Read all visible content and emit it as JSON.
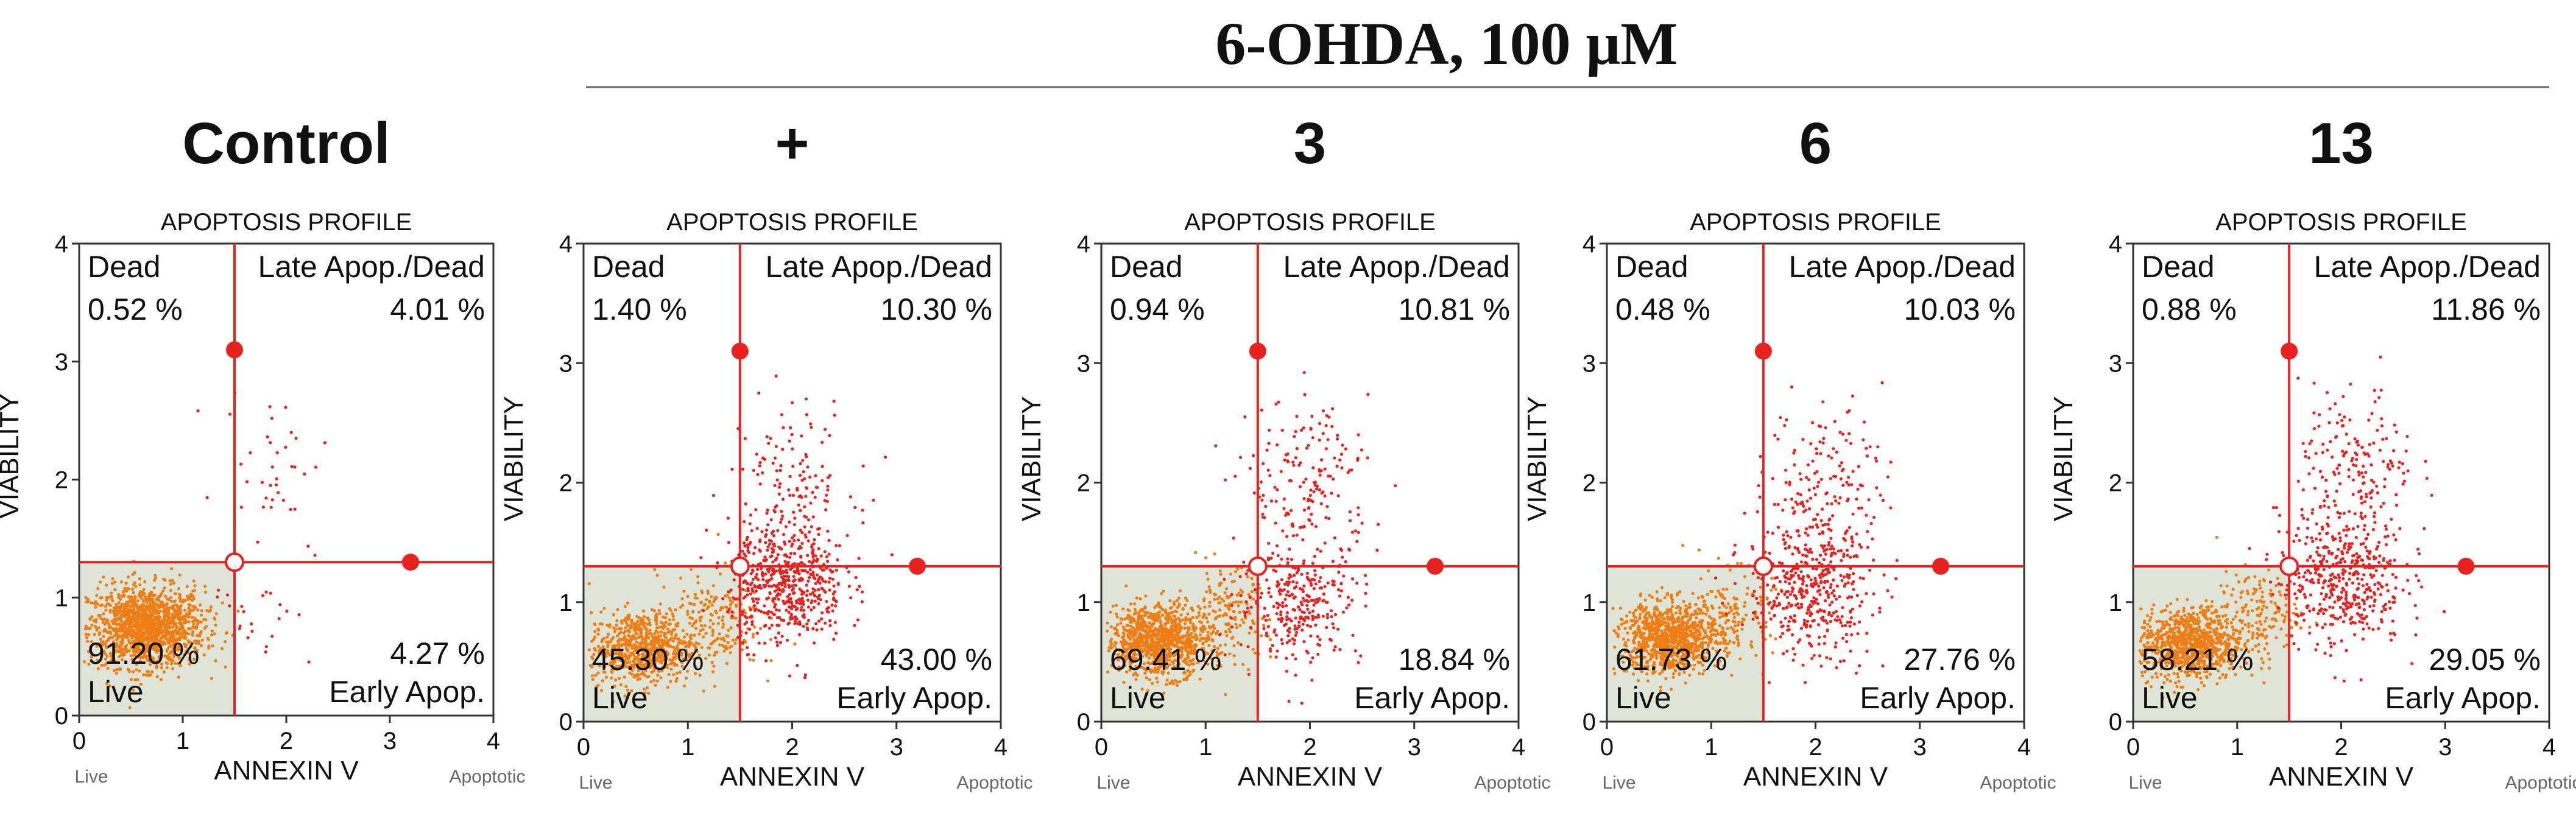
{
  "header": {
    "title": "6-OHDA, 100 μM"
  },
  "colors": {
    "quadline": "#e8231f",
    "dots_red": "#e8231f",
    "dots_orange": "#ef7d14",
    "live_fill": "#dfe5d6",
    "axis": "#333333",
    "text": "#111111"
  },
  "chart_data": [
    {
      "type": "scatter",
      "panel_label": "Control",
      "title": "APOPTOSIS PROFILE",
      "xlabel": "ANNEXIN V",
      "ylabel": "VIABILITY",
      "x_left_note": "Live",
      "x_right_note": "Apoptotic",
      "xlim": [
        0,
        4
      ],
      "ylim": [
        0,
        4
      ],
      "xticks": [
        "0",
        "1",
        "2",
        "3",
        "4"
      ],
      "yticks": [
        "0",
        "1",
        "2",
        "3",
        "4"
      ],
      "gate": {
        "x": 1.5,
        "y": 1.3
      },
      "quadrants": {
        "dead_label": "Dead",
        "dead_pct": "0.52 %",
        "late_label": "Late Apop./Dead",
        "late_pct": "4.01 %",
        "live_label": "Live",
        "live_pct": "91.20 %",
        "early_label": "Early Apop.",
        "early_pct": "4.27 %"
      },
      "scatter_clusters": [
        {
          "color": "orange",
          "cx": 0.65,
          "cy": 0.75,
          "sx": 0.28,
          "sy": 0.17,
          "n": 1400
        },
        {
          "color": "red",
          "cx": 1.9,
          "cy": 2.2,
          "sx": 0.25,
          "sy": 0.3,
          "n": 35
        },
        {
          "color": "red",
          "cx": 1.75,
          "cy": 1.0,
          "sx": 0.25,
          "sy": 0.3,
          "n": 25
        }
      ]
    },
    {
      "type": "scatter",
      "panel_label": "+",
      "title": "APOPTOSIS PROFILE",
      "xlabel": "ANNEXIN V",
      "ylabel": "VIABILITY",
      "x_left_note": "Live",
      "x_right_note": "Apoptotic",
      "xlim": [
        0,
        4
      ],
      "ylim": [
        0,
        4
      ],
      "xticks": [
        "0",
        "1",
        "2",
        "3",
        "4"
      ],
      "yticks": [
        "0",
        "1",
        "2",
        "3",
        "4"
      ],
      "gate": {
        "x": 1.5,
        "y": 1.3
      },
      "quadrants": {
        "dead_label": "Dead",
        "dead_pct": "1.40 %",
        "late_label": "Late Apop./Dead",
        "late_pct": "10.30 %",
        "live_label": "Live",
        "live_pct": "45.30 %",
        "early_label": "Early Apop.",
        "early_pct": "43.00 %"
      },
      "scatter_clusters": [
        {
          "color": "orange",
          "cx": 0.55,
          "cy": 0.62,
          "sx": 0.25,
          "sy": 0.15,
          "n": 700
        },
        {
          "color": "orange",
          "cx": 1.2,
          "cy": 0.85,
          "sx": 0.25,
          "sy": 0.2,
          "n": 200
        },
        {
          "color": "red",
          "cx": 1.95,
          "cy": 1.15,
          "sx": 0.28,
          "sy": 0.25,
          "n": 550
        },
        {
          "color": "red",
          "cx": 2.0,
          "cy": 2.0,
          "sx": 0.3,
          "sy": 0.35,
          "n": 140
        }
      ]
    },
    {
      "type": "scatter",
      "panel_label": "3",
      "title": "APOPTOSIS PROFILE",
      "xlabel": "ANNEXIN V",
      "ylabel": "VIABILITY",
      "x_left_note": "Live",
      "x_right_note": "Apoptotic",
      "xlim": [
        0,
        4
      ],
      "ylim": [
        0,
        4
      ],
      "xticks": [
        "0",
        "1",
        "2",
        "3",
        "4"
      ],
      "yticks": [
        "0",
        "1",
        "2",
        "3",
        "4"
      ],
      "gate": {
        "x": 1.5,
        "y": 1.3
      },
      "quadrants": {
        "dead_label": "Dead",
        "dead_pct": "0.94 %",
        "late_label": "Late Apop./Dead",
        "late_pct": "10.81 %",
        "live_label": "Live",
        "live_pct": "69.41 %",
        "early_label": "Early Apop.",
        "early_pct": "18.84 %"
      },
      "scatter_clusters": [
        {
          "color": "orange",
          "cx": 0.55,
          "cy": 0.68,
          "sx": 0.25,
          "sy": 0.15,
          "n": 1000
        },
        {
          "color": "orange",
          "cx": 1.2,
          "cy": 0.9,
          "sx": 0.2,
          "sy": 0.18,
          "n": 150
        },
        {
          "color": "red",
          "cx": 1.9,
          "cy": 1.0,
          "sx": 0.3,
          "sy": 0.25,
          "n": 300
        },
        {
          "color": "red",
          "cx": 2.0,
          "cy": 2.0,
          "sx": 0.3,
          "sy": 0.35,
          "n": 170
        }
      ]
    },
    {
      "type": "scatter",
      "panel_label": "6",
      "title": "APOPTOSIS PROFILE",
      "xlabel": "ANNEXIN V",
      "ylabel": "VIABILITY",
      "x_left_note": "Live",
      "x_right_note": "Apoptotic",
      "xlim": [
        0,
        4
      ],
      "ylim": [
        0,
        4
      ],
      "xticks": [
        "0",
        "1",
        "2",
        "3",
        "4"
      ],
      "yticks": [
        "0",
        "1",
        "2",
        "3",
        "4"
      ],
      "gate": {
        "x": 1.5,
        "y": 1.3
      },
      "quadrants": {
        "dead_label": "Dead",
        "dead_pct": "0.48 %",
        "late_label": "Late Apop./Dead",
        "late_pct": "10.03 %",
        "live_label": "Live",
        "live_pct": "61.73 %",
        "early_label": "Early Apop.",
        "early_pct": "27.76 %"
      },
      "scatter_clusters": [
        {
          "color": "orange",
          "cx": 0.6,
          "cy": 0.7,
          "sx": 0.25,
          "sy": 0.15,
          "n": 950
        },
        {
          "color": "orange",
          "cx": 1.2,
          "cy": 0.9,
          "sx": 0.2,
          "sy": 0.18,
          "n": 150
        },
        {
          "color": "red",
          "cx": 1.95,
          "cy": 1.1,
          "sx": 0.3,
          "sy": 0.28,
          "n": 430
        },
        {
          "color": "red",
          "cx": 2.1,
          "cy": 2.0,
          "sx": 0.28,
          "sy": 0.35,
          "n": 160
        }
      ]
    },
    {
      "type": "scatter",
      "panel_label": "13",
      "title": "APOPTOSIS PROFILE",
      "xlabel": "ANNEXIN V",
      "ylabel": "VIABILITY",
      "x_left_note": "Live",
      "x_right_note": "Apoptotic",
      "xlim": [
        0,
        4
      ],
      "ylim": [
        0,
        4
      ],
      "xticks": [
        "0",
        "1",
        "2",
        "3",
        "4"
      ],
      "yticks": [
        "0",
        "1",
        "2",
        "3",
        "4"
      ],
      "gate": {
        "x": 1.5,
        "y": 1.3
      },
      "quadrants": {
        "dead_label": "Dead",
        "dead_pct": "0.88 %",
        "late_label": "Late Apop./Dead",
        "late_pct": "11.86 %",
        "live_label": "Live",
        "live_pct": "58.21 %",
        "early_label": "Early Apop.",
        "early_pct": "29.05 %"
      },
      "scatter_clusters": [
        {
          "color": "orange",
          "cx": 0.55,
          "cy": 0.65,
          "sx": 0.25,
          "sy": 0.15,
          "n": 900
        },
        {
          "color": "orange",
          "cx": 1.2,
          "cy": 0.9,
          "sx": 0.2,
          "sy": 0.18,
          "n": 150
        },
        {
          "color": "red",
          "cx": 2.0,
          "cy": 1.2,
          "sx": 0.3,
          "sy": 0.28,
          "n": 450
        },
        {
          "color": "red",
          "cx": 2.15,
          "cy": 2.1,
          "sx": 0.28,
          "sy": 0.35,
          "n": 180
        }
      ]
    }
  ]
}
